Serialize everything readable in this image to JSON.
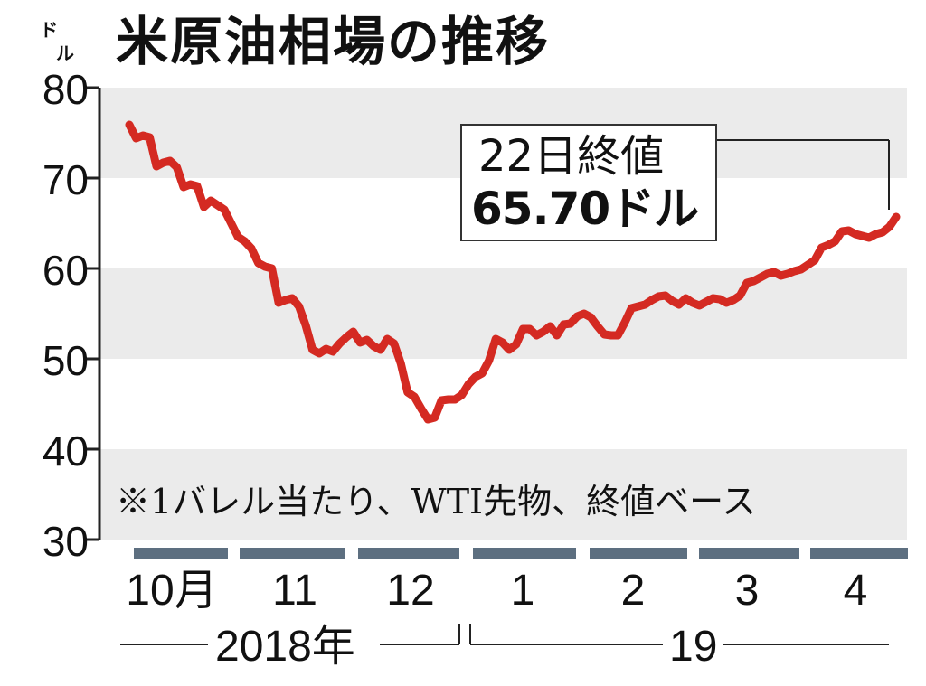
{
  "chart_data": {
    "type": "line",
    "title": "米原油相場の推移",
    "ylabel": "ドル",
    "ylim": [
      30,
      80
    ],
    "yticks": [
      "80",
      "70",
      "60",
      "50",
      "40",
      "30"
    ],
    "grid": "horizontal bands",
    "note": "※1バレル当たり、WTI先物、終値ベース",
    "annotation": {
      "line1": "22日終値",
      "line2": "65.70ドル"
    },
    "months": [
      "10月",
      "11",
      "12",
      "1",
      "2",
      "3",
      "4"
    ],
    "years": [
      "2018年",
      "19"
    ],
    "line_color": "#d42a22",
    "series": [
      {
        "values": [
          75.9,
          74.4,
          74.7,
          74.5,
          71.3,
          71.7,
          71.9,
          71.2,
          69.0,
          69.3,
          69.1,
          66.8,
          67.5,
          67.0,
          66.5,
          65.0,
          63.5,
          63.0,
          62.2,
          60.6,
          60.2,
          60.0,
          56.2,
          56.5,
          56.7,
          55.8,
          53.7,
          51.0,
          50.6,
          51.1,
          50.8,
          51.7,
          52.4,
          53.0,
          51.8,
          52.1,
          51.4,
          51.0,
          52.2,
          51.7,
          49.5,
          46.3,
          45.8,
          44.5,
          43.3,
          43.5,
          45.4,
          45.5,
          45.5,
          46.0,
          47.2,
          48.0,
          48.4,
          49.8,
          52.2,
          51.8,
          51.0,
          51.6,
          53.3,
          53.3,
          52.6,
          53.0,
          53.6,
          52.6,
          53.8,
          53.9,
          54.7,
          55.0,
          54.6,
          53.6,
          52.7,
          52.6,
          52.6,
          54.0,
          55.6,
          55.8,
          56.0,
          56.5,
          56.9,
          57.0,
          56.4,
          56.0,
          56.7,
          56.2,
          55.9,
          56.3,
          56.7,
          56.6,
          56.2,
          56.5,
          57.0,
          58.4,
          58.6,
          59.0,
          59.4,
          59.6,
          59.2,
          59.4,
          59.7,
          59.9,
          60.4,
          60.9,
          62.3,
          62.6,
          63.0,
          64.1,
          64.2,
          63.8,
          63.6,
          63.4,
          63.8,
          64.0,
          64.6,
          65.7
        ]
      }
    ]
  }
}
